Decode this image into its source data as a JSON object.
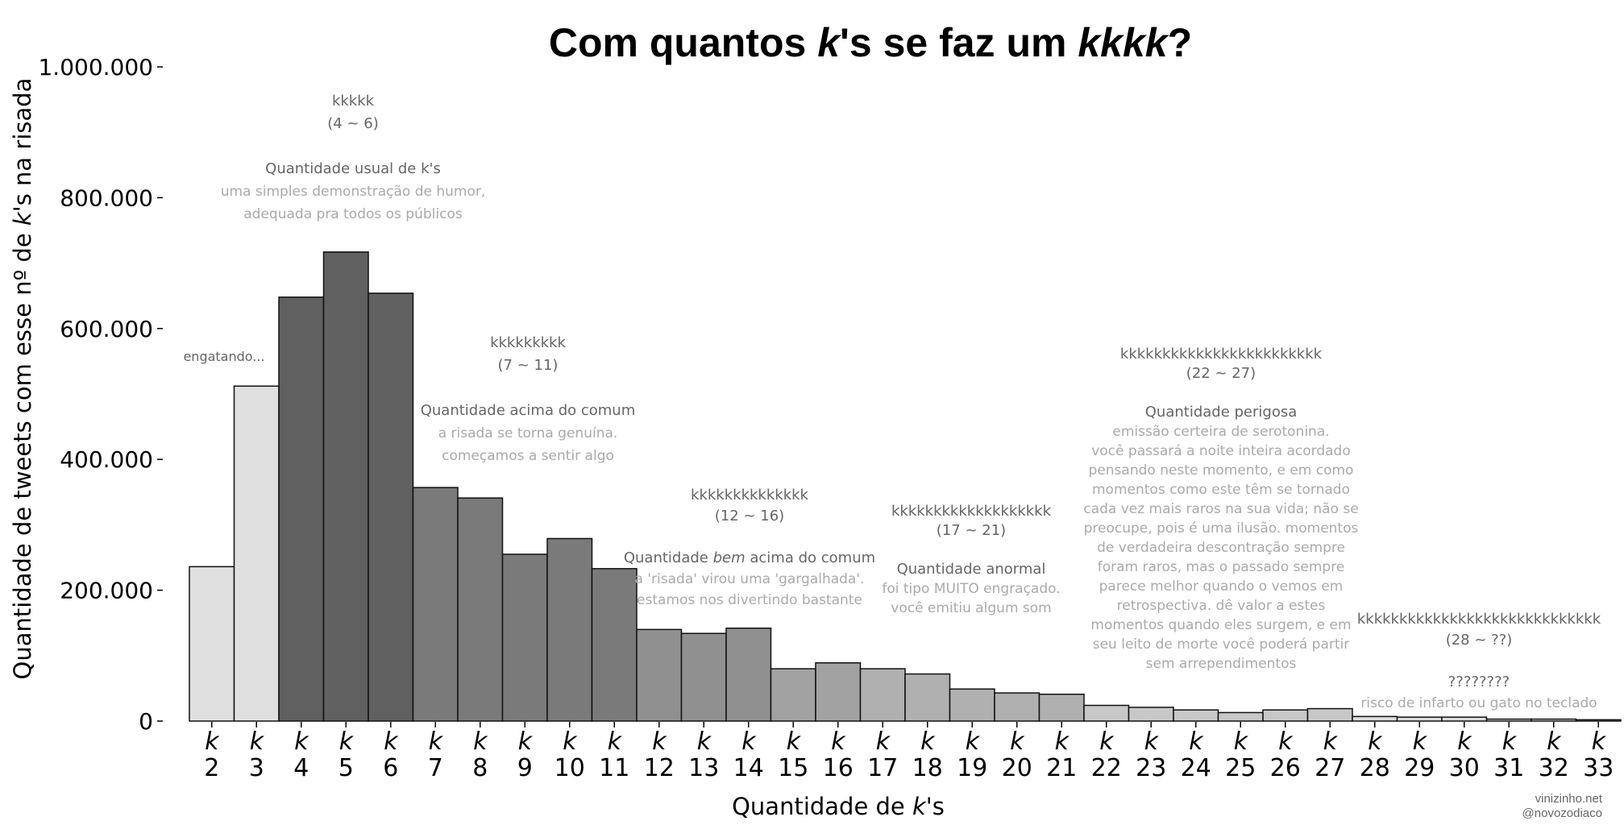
{
  "chart_data": {
    "type": "bar",
    "title_parts": [
      {
        "text": "Com quantos ",
        "italic": false
      },
      {
        "text": "k",
        "italic": true
      },
      {
        "text": "'s se faz um ",
        "italic": false
      },
      {
        "text": "kkkk",
        "italic": true
      },
      {
        "text": "?",
        "italic": false
      }
    ],
    "xlabel_parts": [
      {
        "text": "Quantidade de ",
        "italic": false
      },
      {
        "text": "k",
        "italic": true
      },
      {
        "text": "'s",
        "italic": false
      }
    ],
    "ylabel_parts": [
      {
        "text": "Quantidade de tweets com esse nº de ",
        "italic": false
      },
      {
        "text": "k",
        "italic": true
      },
      {
        "text": "'s na risada",
        "italic": false
      }
    ],
    "ylim": [
      0,
      1000000
    ],
    "yticks": [
      {
        "value": 0,
        "label": "0"
      },
      {
        "value": 200000,
        "label": "200.000"
      },
      {
        "value": 400000,
        "label": "400.000"
      },
      {
        "value": 600000,
        "label": "600.000"
      },
      {
        "value": 800000,
        "label": "800.000"
      },
      {
        "value": 1000000,
        "label": "1.000.000"
      }
    ],
    "x_letter": "k",
    "categories": [
      "2",
      "3",
      "4",
      "5",
      "6",
      "7",
      "8",
      "9",
      "10",
      "11",
      "12",
      "13",
      "14",
      "15",
      "16",
      "17",
      "18",
      "19",
      "20",
      "21",
      "22",
      "23",
      "24",
      "25",
      "26",
      "27",
      "28",
      "29",
      "30",
      "31",
      "32",
      "33"
    ],
    "values": [
      236000,
      512000,
      648000,
      717000,
      654000,
      357000,
      341000,
      255000,
      279000,
      233000,
      140000,
      134000,
      142000,
      80000,
      89000,
      80000,
      72000,
      49000,
      43000,
      41000,
      24000,
      21000,
      17000,
      13000,
      17000,
      19000,
      7000,
      6000,
      6000,
      3000,
      3000,
      2000
    ],
    "bar_colors": [
      "#e0e0e0",
      "#e0e0e0",
      "#606060",
      "#606060",
      "#606060",
      "#7a7a7a",
      "#7a7a7a",
      "#7a7a7a",
      "#7a7a7a",
      "#7a7a7a",
      "#909090",
      "#909090",
      "#909090",
      "#a2a2a2",
      "#a2a2a2",
      "#b0b0b0",
      "#b0b0b0",
      "#b0b0b0",
      "#b0b0b0",
      "#b0b0b0",
      "#c8c8c8",
      "#c8c8c8",
      "#c8c8c8",
      "#c8c8c8",
      "#c8c8c8",
      "#c8c8c8",
      "#dcdcdc",
      "#dcdcdc",
      "#dcdcdc",
      "#dcdcdc",
      "#dcdcdc",
      "#dcdcdc"
    ],
    "annotations": [
      {
        "lines": [
          "engatando..."
        ],
        "styles": [
          "small"
        ]
      },
      {
        "lines": [
          "kkkkk",
          "(4 ~ 6)",
          "",
          "Quantidade usual de k's",
          "uma simples demonstração de humor,",
          "adequada pra todos os públicos"
        ],
        "styles": [
          "k",
          "k",
          "",
          "head",
          "body",
          "body"
        ]
      },
      {
        "lines": [
          "kkkkkkkkk",
          "(7 ~ 11)",
          "",
          "Quantidade acima do comum",
          "a risada se torna genuína.",
          "começamos a sentir algo"
        ],
        "styles": [
          "k",
          "k",
          "",
          "head",
          "body",
          "body"
        ]
      },
      {
        "lines": [
          "kkkkkkkkkkkkkk",
          "(12 ~ 16)",
          "",
          "Quantidade bem acima do comum",
          "a 'risada' virou uma 'gargalhada'.",
          "estamos nos divertindo bastante"
        ],
        "styles": [
          "k",
          "k",
          "",
          "head",
          "body",
          "body"
        ]
      },
      {
        "lines": [
          "kkkkkkkkkkkkkkkkkkk",
          "(17 ~ 21)",
          "",
          "Quantidade anormal",
          "foi tipo MUITO engraçado.",
          "você emitiu algum som"
        ],
        "styles": [
          "k",
          "k",
          "",
          "head",
          "body",
          "body"
        ]
      },
      {
        "lines": [
          "kkkkkkkkkkkkkkkkkkkkkkkk",
          "(22 ~ 27)",
          "",
          "Quantidade perigosa",
          "emissão certeira de serotonina.",
          "você passará a noite inteira acordado",
          "pensando neste momento, e em como",
          "momentos como este têm se tornado",
          "cada vez mais raros na sua vida; não se",
          "preocupe, pois é uma ilusão. momentos",
          "de verdadeira descontração sempre",
          "foram raros, mas o passado sempre",
          "parece melhor quando o vemos em",
          "retrospectiva. dê valor a estes",
          "momentos quando eles surgem, e em",
          "seu leito de morte você poderá partir",
          "sem arrependimentos"
        ],
        "styles": [
          "k",
          "k",
          "",
          "head",
          "body",
          "body",
          "body",
          "body",
          "body",
          "body",
          "body",
          "body",
          "body",
          "body",
          "body",
          "body",
          "body"
        ]
      },
      {
        "lines": [
          "kkkkkkkkkkkkkkkkkkkkkkkkkkkkk",
          "(28 ~ ??)",
          "",
          "????????",
          "risco de infarto ou gato no teclado"
        ],
        "styles": [
          "k",
          "k",
          "",
          "head",
          "body"
        ]
      }
    ],
    "credits": [
      "vinizinho.net",
      "@novozodiaco"
    ]
  }
}
